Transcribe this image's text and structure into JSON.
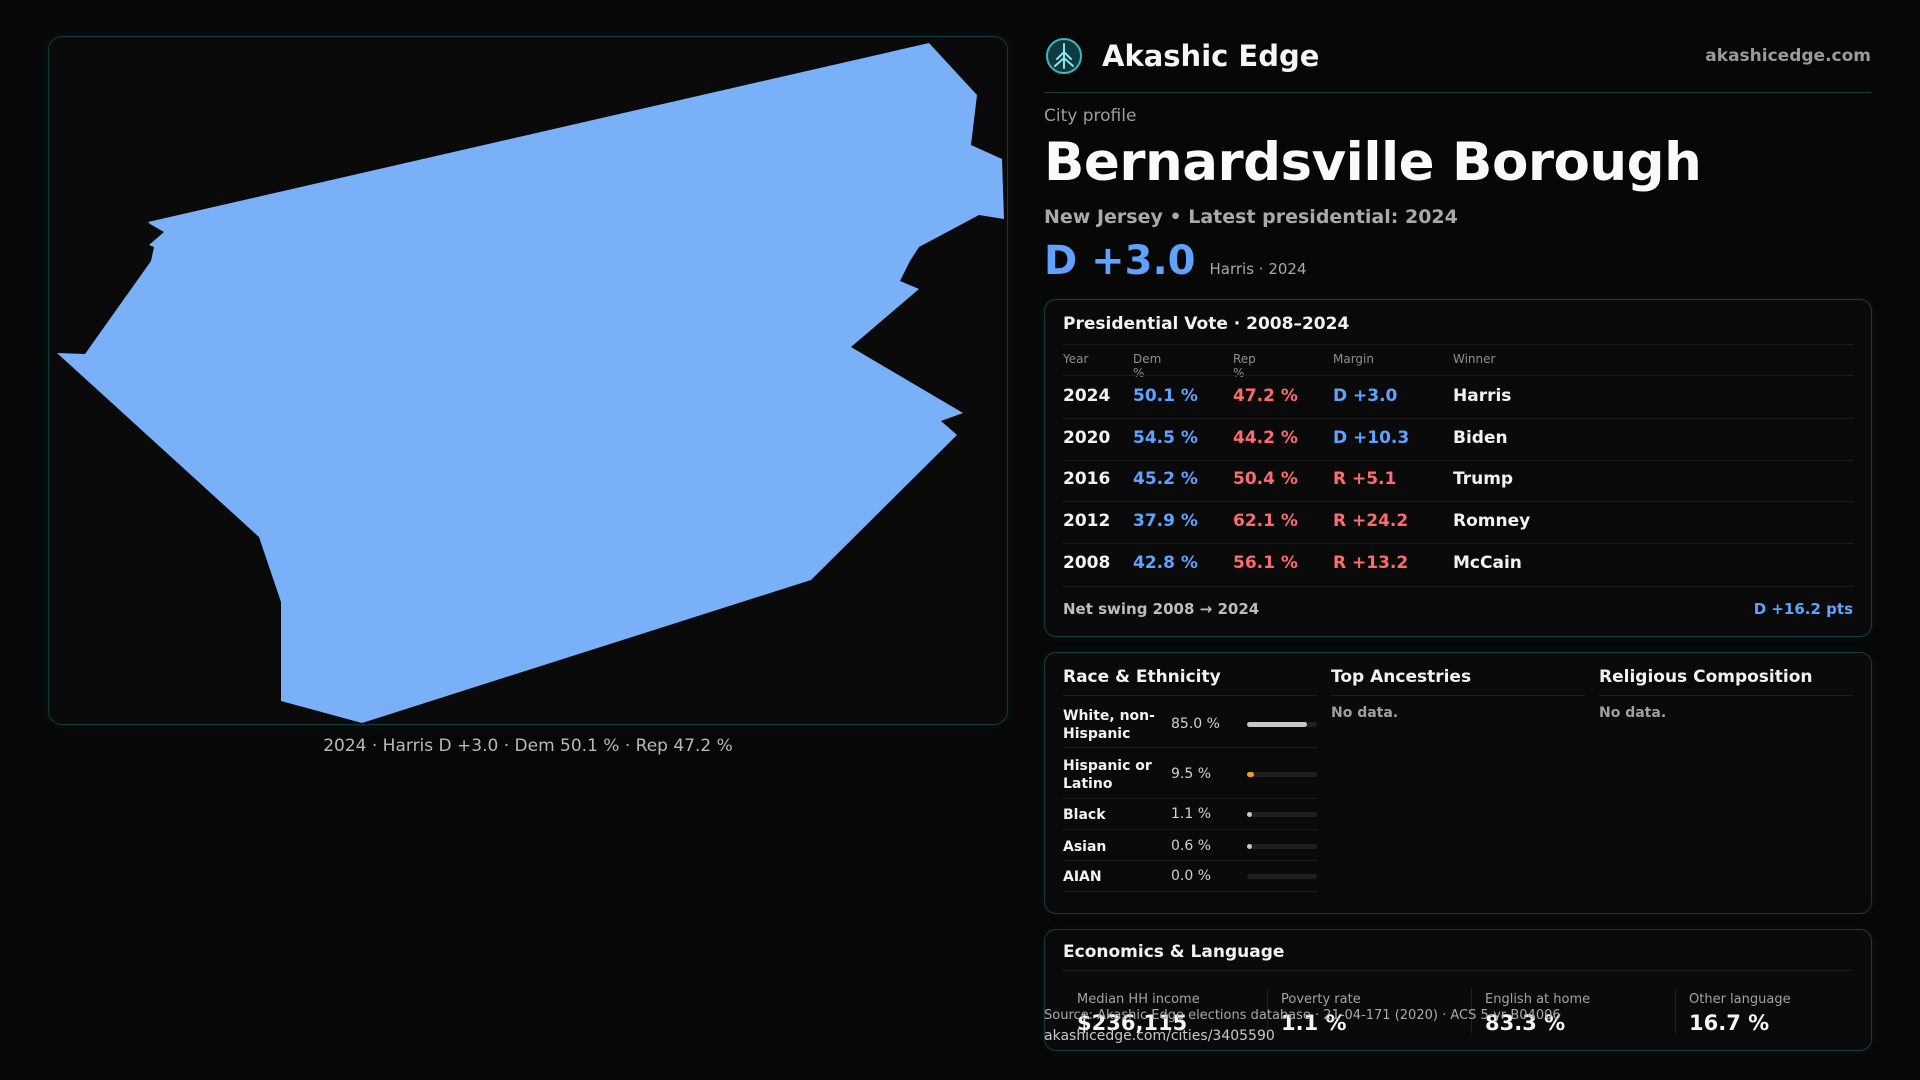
{
  "map": {
    "caption": "2024 · Harris D +3.0 · Dem 50.1 % · Rep 47.2 %",
    "fill_color": "#79b0f8"
  },
  "header": {
    "brand_name": "Akashic Edge",
    "brand_url": "akashicedge.com",
    "logo_icon": "tree-icon"
  },
  "profile": {
    "eyebrow": "City profile",
    "title": "Bernardsville Borough",
    "subtitle": "New Jersey • Latest presidential: 2024",
    "margin": "D +3.0",
    "margin_sub": "Harris · 2024"
  },
  "presidential": {
    "title": "Presidential Vote · 2008–2024",
    "headers": [
      "Year",
      "Dem %",
      "Rep %",
      "Margin",
      "Winner"
    ],
    "rows": [
      {
        "year": "2024",
        "dem": "50.1 %",
        "rep": "47.2 %",
        "margin": "D +3.0",
        "margin_party": "D",
        "winner": "Harris"
      },
      {
        "year": "2020",
        "dem": "54.5 %",
        "rep": "44.2 %",
        "margin": "D +10.3",
        "margin_party": "D",
        "winner": "Biden"
      },
      {
        "year": "2016",
        "dem": "45.2 %",
        "rep": "50.4 %",
        "margin": "R +5.1",
        "margin_party": "R",
        "winner": "Trump"
      },
      {
        "year": "2012",
        "dem": "37.9 %",
        "rep": "62.1 %",
        "margin": "R +24.2",
        "margin_party": "R",
        "winner": "Romney"
      },
      {
        "year": "2008",
        "dem": "42.8 %",
        "rep": "56.1 %",
        "margin": "R +13.2",
        "margin_party": "R",
        "winner": "McCain"
      }
    ],
    "swing_label": "Net swing 2008 → 2024",
    "swing_value": "D +16.2 pts"
  },
  "demographics": {
    "race_title": "Race & Ethnicity",
    "race": [
      {
        "label": "White, non-Hispanic",
        "pct": "85.0 %",
        "share": 0.85,
        "color": "#c8c8c8"
      },
      {
        "label": "Hispanic or Latino",
        "pct": "9.5 %",
        "share": 0.095,
        "color": "#f0a020"
      },
      {
        "label": "Black",
        "pct": "1.1 %",
        "share": 0.011,
        "color": "#c8c8c8"
      },
      {
        "label": "Asian",
        "pct": "0.6 %",
        "share": 0.006,
        "color": "#c8c8c8"
      },
      {
        "label": "AIAN",
        "pct": "0.0 %",
        "share": 0.0,
        "color": "#c8c8c8"
      }
    ],
    "ancestry_title": "Top Ancestries",
    "ancestry_empty": "No data.",
    "religion_title": "Religious Composition",
    "religion_empty": "No data."
  },
  "economics": {
    "title": "Economics & Language",
    "stats": [
      {
        "label": "Median HH income",
        "value": "$236,115"
      },
      {
        "label": "Poverty rate",
        "value": "1.1 %"
      },
      {
        "label": "English at home",
        "value": "83.3 %"
      },
      {
        "label": "Other language",
        "value": "16.7 %"
      }
    ]
  },
  "source": {
    "line": "Source: Akashic Edge elections database · 21-04-171 (2020) · ACS 5-yr B04006",
    "url": "akashicedge.com/cities/3405590"
  },
  "colors": {
    "dem": "#5fa2ff",
    "rep": "#ff6b6b",
    "accent_border": "#163c40"
  }
}
